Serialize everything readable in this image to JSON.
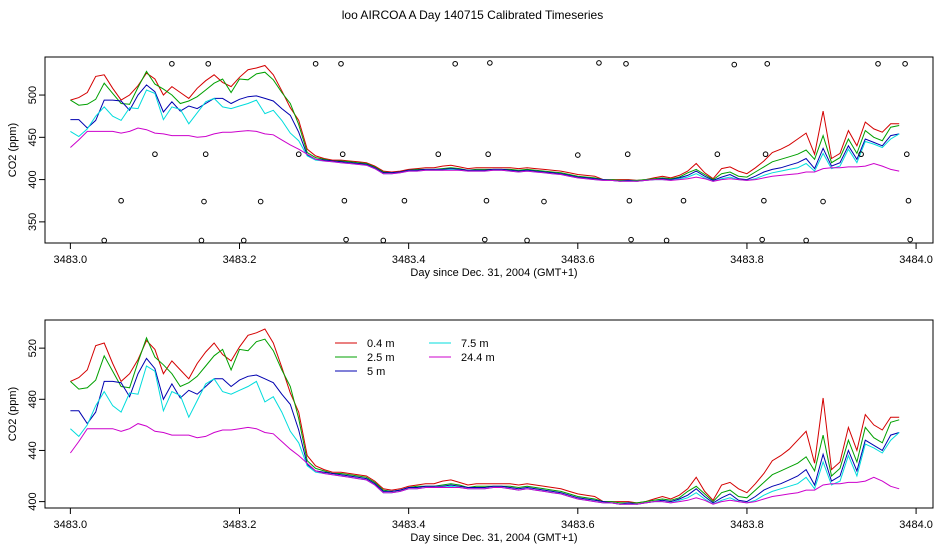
{
  "title": "loo AIRCOA A  Day 140715  Calibrated Timeseries",
  "colors": {
    "0.4 m": "#d40000",
    "2.5 m": "#00a000",
    "5 m": "#0000b0",
    "7.5 m": "#00dcdc",
    "24.4 m": "#cc00cc"
  },
  "chart_data": [
    {
      "type": "line",
      "xlabel": "Day since Dec. 31, 2004 (GMT+1)",
      "ylabel": "CO2 (ppm)",
      "xlim": [
        3482.97,
        3484.02
      ],
      "ylim": [
        325,
        545
      ],
      "xticks": [
        "3483.0",
        "3483.2",
        "3483.4",
        "3483.6",
        "3483.8",
        "3484.0"
      ],
      "yticks": [
        "350",
        "400",
        "450",
        "500"
      ],
      "markers": [
        {
          "x": 3483.04,
          "y": 328
        },
        {
          "x": 3483.06,
          "y": 375
        },
        {
          "x": 3483.1,
          "y": 430
        },
        {
          "x": 3483.12,
          "y": 537
        },
        {
          "x": 3483.155,
          "y": 328
        },
        {
          "x": 3483.158,
          "y": 374
        },
        {
          "x": 3483.16,
          "y": 430
        },
        {
          "x": 3483.163,
          "y": 537
        },
        {
          "x": 3483.205,
          "y": 328
        },
        {
          "x": 3483.225,
          "y": 374
        },
        {
          "x": 3483.27,
          "y": 430
        },
        {
          "x": 3483.29,
          "y": 537
        },
        {
          "x": 3483.32,
          "y": 537
        },
        {
          "x": 3483.322,
          "y": 430
        },
        {
          "x": 3483.324,
          "y": 375
        },
        {
          "x": 3483.326,
          "y": 329
        },
        {
          "x": 3483.37,
          "y": 328
        },
        {
          "x": 3483.395,
          "y": 375
        },
        {
          "x": 3483.435,
          "y": 430
        },
        {
          "x": 3483.455,
          "y": 537
        },
        {
          "x": 3483.49,
          "y": 329
        },
        {
          "x": 3483.492,
          "y": 375
        },
        {
          "x": 3483.494,
          "y": 430
        },
        {
          "x": 3483.496,
          "y": 538
        },
        {
          "x": 3483.54,
          "y": 328
        },
        {
          "x": 3483.56,
          "y": 374
        },
        {
          "x": 3483.6,
          "y": 429
        },
        {
          "x": 3483.625,
          "y": 538
        },
        {
          "x": 3483.657,
          "y": 537
        },
        {
          "x": 3483.659,
          "y": 430
        },
        {
          "x": 3483.661,
          "y": 375
        },
        {
          "x": 3483.663,
          "y": 329
        },
        {
          "x": 3483.705,
          "y": 328
        },
        {
          "x": 3483.725,
          "y": 375
        },
        {
          "x": 3483.765,
          "y": 430
        },
        {
          "x": 3483.785,
          "y": 536
        },
        {
          "x": 3483.818,
          "y": 329
        },
        {
          "x": 3483.82,
          "y": 375
        },
        {
          "x": 3483.822,
          "y": 430
        },
        {
          "x": 3483.824,
          "y": 537
        },
        {
          "x": 3483.87,
          "y": 328
        },
        {
          "x": 3483.89,
          "y": 374
        },
        {
          "x": 3483.935,
          "y": 430
        },
        {
          "x": 3483.955,
          "y": 537
        },
        {
          "x": 3483.987,
          "y": 537
        },
        {
          "x": 3483.989,
          "y": 430
        },
        {
          "x": 3483.991,
          "y": 375
        },
        {
          "x": 3483.993,
          "y": 329
        }
      ]
    },
    {
      "type": "line",
      "xlabel": "Day since Dec. 31, 2004 (GMT+1)",
      "ylabel": "CO2 (ppm)",
      "xlim": [
        3482.97,
        3484.02
      ],
      "ylim": [
        395,
        542
      ],
      "xticks": [
        "3483.0",
        "3483.2",
        "3483.4",
        "3483.6",
        "3483.8",
        "3484.0"
      ],
      "yticks": [
        "400",
        "440",
        "480",
        "520"
      ],
      "legend": [
        "0.4 m",
        "2.5 m",
        "5 m",
        "7.5 m",
        "24.4 m"
      ]
    }
  ],
  "series_shared": {
    "x": [
      3483.0,
      3483.01,
      3483.02,
      3483.03,
      3483.04,
      3483.05,
      3483.06,
      3483.07,
      3483.08,
      3483.09,
      3483.1,
      3483.11,
      3483.12,
      3483.13,
      3483.14,
      3483.15,
      3483.16,
      3483.17,
      3483.18,
      3483.19,
      3483.2,
      3483.21,
      3483.22,
      3483.23,
      3483.24,
      3483.25,
      3483.26,
      3483.27,
      3483.28,
      3483.29,
      3483.3,
      3483.31,
      3483.32,
      3483.33,
      3483.34,
      3483.35,
      3483.36,
      3483.37,
      3483.38,
      3483.39,
      3483.4,
      3483.41,
      3483.42,
      3483.43,
      3483.44,
      3483.45,
      3483.46,
      3483.47,
      3483.48,
      3483.49,
      3483.5,
      3483.51,
      3483.52,
      3483.53,
      3483.54,
      3483.55,
      3483.56,
      3483.57,
      3483.58,
      3483.59,
      3483.6,
      3483.61,
      3483.62,
      3483.63,
      3483.64,
      3483.65,
      3483.66,
      3483.67,
      3483.68,
      3483.69,
      3483.7,
      3483.71,
      3483.72,
      3483.73,
      3483.74,
      3483.75,
      3483.76,
      3483.77,
      3483.78,
      3483.79,
      3483.8,
      3483.81,
      3483.82,
      3483.83,
      3483.84,
      3483.85,
      3483.86,
      3483.87,
      3483.88,
      3483.89,
      3483.9,
      3483.91,
      3483.92,
      3483.93,
      3483.94,
      3483.95,
      3483.96,
      3483.97,
      3483.98
    ],
    "series": [
      {
        "name": "0.4 m",
        "values": [
          494,
          497,
          503,
          522,
          524,
          508,
          494,
          500,
          511,
          526,
          519,
          500,
          510,
          503,
          496,
          508,
          517,
          524,
          515,
          510,
          521,
          530,
          532,
          535,
          524,
          505,
          485,
          470,
          436,
          428,
          425,
          423,
          423,
          422,
          421,
          420,
          416,
          410,
          409,
          410,
          412,
          413,
          414,
          414,
          416,
          417,
          415,
          413,
          414,
          414,
          414,
          414,
          414,
          413,
          414,
          413,
          412,
          411,
          410,
          408,
          406,
          405,
          404,
          400,
          400,
          400,
          400,
          399,
          400,
          402,
          404,
          402,
          405,
          410,
          419,
          408,
          401,
          413,
          415,
          410,
          407,
          414,
          422,
          432,
          436,
          441,
          448,
          455,
          430,
          481,
          425,
          431,
          458,
          440,
          468,
          460,
          456,
          466,
          466
        ]
      },
      {
        "name": "2.5 m",
        "values": [
          494,
          488,
          489,
          495,
          514,
          502,
          490,
          489,
          509,
          528,
          513,
          507,
          500,
          490,
          493,
          498,
          506,
          514,
          519,
          503,
          519,
          518,
          525,
          527,
          518,
          503,
          490,
          465,
          432,
          426,
          424,
          422,
          422,
          421,
          420,
          419,
          415,
          409,
          408,
          409,
          411,
          412,
          412,
          412,
          413,
          414,
          413,
          411,
          412,
          412,
          412,
          412,
          412,
          411,
          412,
          411,
          410,
          409,
          408,
          406,
          404,
          403,
          402,
          400,
          400,
          399,
          399,
          399,
          400,
          401,
          402,
          401,
          403,
          408,
          412,
          406,
          400,
          407,
          409,
          404,
          403,
          409,
          415,
          421,
          424,
          427,
          430,
          435,
          424,
          452,
          420,
          426,
          448,
          431,
          458,
          450,
          446,
          462,
          464
        ]
      },
      {
        "name": "5 m",
        "values": [
          471,
          471,
          461,
          470,
          494,
          494,
          493,
          482,
          500,
          512,
          504,
          480,
          492,
          481,
          487,
          484,
          490,
          496,
          496,
          490,
          495,
          498,
          499,
          496,
          493,
          484,
          476,
          456,
          429,
          424,
          423,
          422,
          421,
          420,
          419,
          418,
          414,
          408,
          408,
          409,
          411,
          411,
          412,
          412,
          412,
          413,
          412,
          411,
          411,
          411,
          412,
          412,
          411,
          410,
          411,
          410,
          409,
          408,
          407,
          405,
          403,
          402,
          401,
          400,
          399,
          398,
          399,
          398,
          399,
          400,
          401,
          400,
          402,
          405,
          410,
          404,
          399,
          403,
          406,
          401,
          400,
          404,
          409,
          412,
          414,
          417,
          420,
          425,
          413,
          437,
          416,
          420,
          440,
          424,
          448,
          444,
          440,
          452,
          454
        ]
      },
      {
        "name": "7.5 m",
        "values": [
          457,
          451,
          460,
          475,
          486,
          475,
          470,
          485,
          484,
          506,
          502,
          471,
          486,
          483,
          466,
          479,
          492,
          496,
          486,
          484,
          487,
          490,
          494,
          478,
          482,
          470,
          455,
          446,
          428,
          423,
          422,
          421,
          420,
          419,
          418,
          417,
          413,
          407,
          407,
          408,
          410,
          410,
          411,
          411,
          411,
          412,
          411,
          410,
          410,
          410,
          411,
          411,
          410,
          409,
          410,
          409,
          408,
          407,
          406,
          404,
          402,
          401,
          400,
          399,
          399,
          398,
          398,
          398,
          399,
          400,
          400,
          399,
          401,
          403,
          407,
          402,
          398,
          401,
          403,
          400,
          399,
          401,
          405,
          408,
          410,
          412,
          414,
          419,
          410,
          431,
          413,
          416,
          436,
          420,
          445,
          442,
          438,
          448,
          454
        ]
      },
      {
        "name": "24.4 m",
        "values": [
          438,
          447,
          457,
          457,
          457,
          457,
          455,
          457,
          461,
          459,
          455,
          454,
          452,
          452,
          452,
          450,
          451,
          454,
          456,
          456,
          457,
          458,
          457,
          454,
          453,
          447,
          441,
          436,
          430,
          424,
          422,
          421,
          420,
          419,
          418,
          417,
          413,
          407,
          407,
          408,
          410,
          410,
          411,
          411,
          411,
          411,
          411,
          410,
          410,
          410,
          411,
          411,
          410,
          409,
          410,
          409,
          408,
          407,
          406,
          404,
          402,
          401,
          400,
          399,
          399,
          398,
          398,
          398,
          399,
          400,
          400,
          399,
          400,
          401,
          403,
          401,
          398,
          400,
          401,
          400,
          399,
          400,
          402,
          404,
          405,
          406,
          407,
          409,
          409,
          413,
          414,
          414,
          415,
          415,
          416,
          419,
          416,
          412,
          410
        ]
      }
    ]
  }
}
